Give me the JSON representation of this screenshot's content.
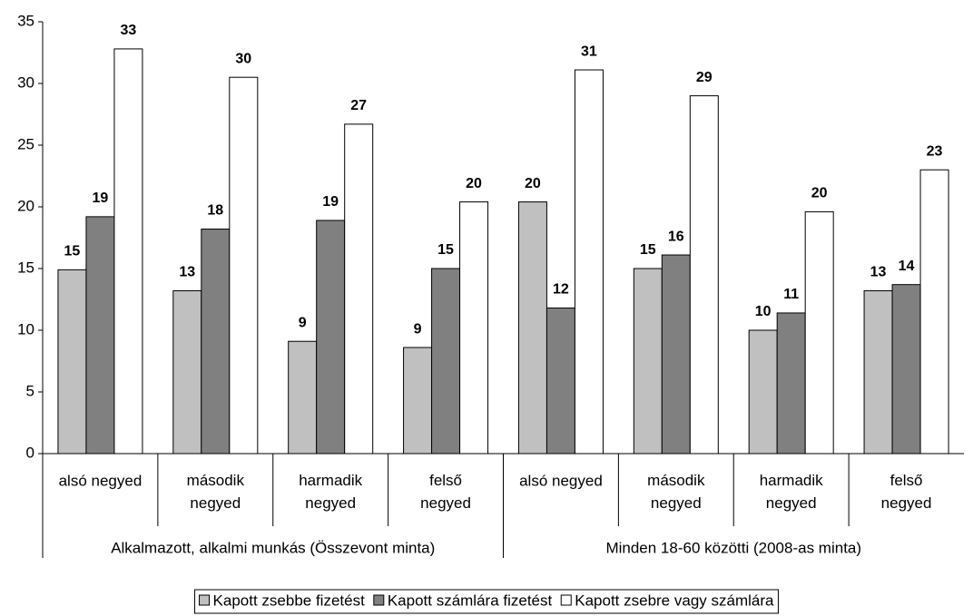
{
  "chart_data": {
    "type": "bar",
    "categories": [
      "alsó negyed",
      "második negyed",
      "harmadik negyed",
      "felső negyed",
      "alsó negyed",
      "második negyed",
      "harmadik negyed",
      "felső negyed"
    ],
    "group_labels": [
      "Alkalmazott, alkalmi munkás (Összevont minta)",
      "Minden 18-60 közötti (2008-as minta)"
    ],
    "series": [
      {
        "name": "Kapott zsebbe fizetést",
        "color": "#c0c0c0",
        "values": [
          14.9,
          13.2,
          9.1,
          8.6,
          20.4,
          15.0,
          10.0,
          13.2
        ],
        "value_labels": [
          "15",
          "13",
          "9",
          "9",
          "20",
          "15",
          "10",
          "13"
        ]
      },
      {
        "name": "Kapott számlára fizetést",
        "color": "#808080",
        "values": [
          19.2,
          18.2,
          18.9,
          15.0,
          11.8,
          16.1,
          11.4,
          13.7
        ],
        "value_labels": [
          "19",
          "18",
          "19",
          "15",
          "12",
          "16",
          "11",
          "14"
        ]
      },
      {
        "name": "Kapott zsebre vagy számlára",
        "color": "#ffffff",
        "values": [
          32.8,
          30.5,
          26.7,
          20.4,
          31.1,
          29.0,
          19.6,
          23.0
        ],
        "value_labels": [
          "33",
          "30",
          "27",
          "20",
          "31",
          "29",
          "20",
          "23"
        ]
      }
    ],
    "ylim": [
      0,
      35
    ],
    "yticks": [
      0,
      5,
      10,
      15,
      20,
      25,
      30,
      35
    ],
    "grid": false,
    "legend": "bottom"
  }
}
